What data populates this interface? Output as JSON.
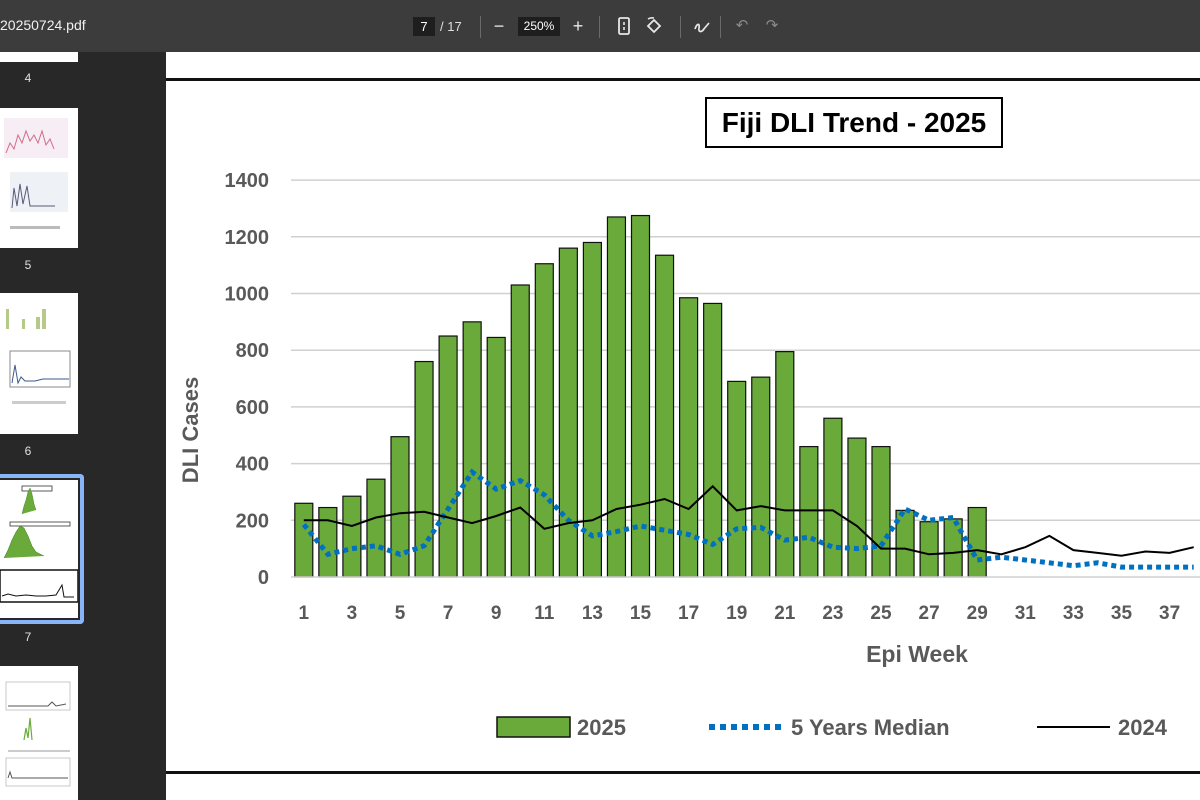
{
  "toolbar": {
    "title": "20250724.pdf",
    "current_page": "7",
    "total_pages": "/ 17",
    "zoom": "250%",
    "zoom_out_icon": "minus-icon",
    "zoom_in_icon": "plus-icon"
  },
  "sidebar": {
    "thumbnails": [
      {
        "number": "4"
      },
      {
        "number": "5"
      },
      {
        "number": "6"
      },
      {
        "number": "7",
        "selected": true
      },
      {
        "number": ""
      }
    ]
  },
  "chart_data": {
    "type": "bar",
    "title": "Fiji DLI Trend - 2025",
    "xlabel": "Epi Week",
    "ylabel": "DLI Cases",
    "ylim": [
      0,
      1400
    ],
    "yticks": [
      0,
      200,
      400,
      600,
      800,
      1000,
      1200,
      1400
    ],
    "xticks": [
      1,
      3,
      5,
      7,
      9,
      11,
      13,
      15,
      17,
      19,
      21,
      23,
      25,
      27,
      29,
      31,
      33,
      35,
      37
    ],
    "grid": true,
    "legend_position": "bottom",
    "series": [
      {
        "name": "2025",
        "kind": "bar",
        "color": "#6aaa3a",
        "x": [
          1,
          2,
          3,
          4,
          5,
          6,
          7,
          8,
          9,
          10,
          11,
          12,
          13,
          14,
          15,
          16,
          17,
          18,
          19,
          20,
          21,
          22,
          23,
          24,
          25,
          26,
          27,
          28,
          29
        ],
        "values": [
          260,
          245,
          285,
          345,
          495,
          760,
          850,
          900,
          845,
          1030,
          1105,
          1160,
          1180,
          1270,
          1275,
          1135,
          985,
          965,
          690,
          705,
          795,
          460,
          560,
          490,
          460,
          235,
          195,
          205,
          245
        ]
      },
      {
        "name": "5 Years Median",
        "kind": "line",
        "style": "dotted",
        "color": "#0070c0",
        "x": [
          1,
          2,
          3,
          4,
          5,
          6,
          7,
          8,
          9,
          10,
          11,
          12,
          13,
          14,
          15,
          16,
          17,
          18,
          19,
          20,
          21,
          22,
          23,
          24,
          25,
          26,
          27,
          28,
          29,
          30,
          31,
          32,
          33,
          34,
          35,
          36,
          37,
          38
        ],
        "values": [
          185,
          80,
          100,
          110,
          80,
          110,
          240,
          370,
          310,
          340,
          290,
          200,
          145,
          160,
          180,
          165,
          150,
          115,
          170,
          175,
          130,
          140,
          105,
          100,
          110,
          240,
          200,
          210,
          60,
          70,
          60,
          50,
          40,
          50,
          35,
          35,
          35,
          35
        ]
      },
      {
        "name": "2024",
        "kind": "line",
        "style": "solid",
        "color": "#000000",
        "x": [
          1,
          2,
          3,
          4,
          5,
          6,
          7,
          8,
          9,
          10,
          11,
          12,
          13,
          14,
          15,
          16,
          17,
          18,
          19,
          20,
          21,
          22,
          23,
          24,
          25,
          26,
          27,
          28,
          29,
          30,
          31,
          32,
          33,
          34,
          35,
          36,
          37,
          38
        ],
        "values": [
          200,
          200,
          180,
          210,
          225,
          230,
          210,
          190,
          215,
          245,
          170,
          190,
          200,
          240,
          255,
          275,
          240,
          320,
          235,
          250,
          235,
          235,
          235,
          180,
          100,
          100,
          80,
          85,
          95,
          80,
          105,
          145,
          95,
          85,
          75,
          90,
          85,
          105
        ]
      }
    ]
  }
}
